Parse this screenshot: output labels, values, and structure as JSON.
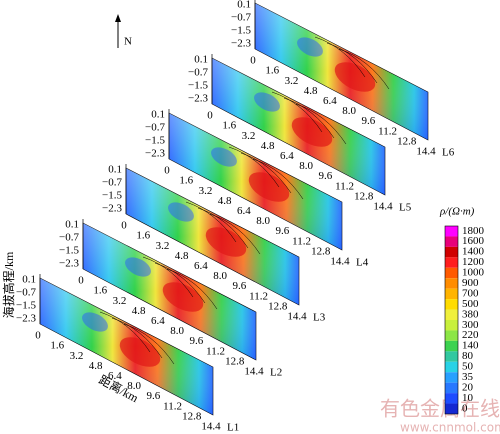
{
  "north": "N",
  "y_axis_label": "海拔高程/km",
  "x_axis_label": "距离/km",
  "depth_ticks": [
    "0.1",
    "−0.7",
    "−1.5",
    "−2.3"
  ],
  "distance_ticks": [
    "0",
    "1.6",
    "3.2",
    "4.8",
    "6.4",
    "8.0",
    "9.6",
    "11.2",
    "12.8",
    "14.4"
  ],
  "profiles": [
    "L1",
    "L2",
    "L3",
    "L4",
    "L5",
    "L6"
  ],
  "colorbar": {
    "title": "ρ/(Ω·m)",
    "labels": [
      1800,
      1600,
      1400,
      1200,
      1000,
      900,
      700,
      500,
      380,
      300,
      220,
      140,
      80,
      50,
      35,
      20,
      10,
      0
    ]
  },
  "watermark": {
    "text": "有色金属在线",
    "url": "www.cnnmol.com"
  }
}
